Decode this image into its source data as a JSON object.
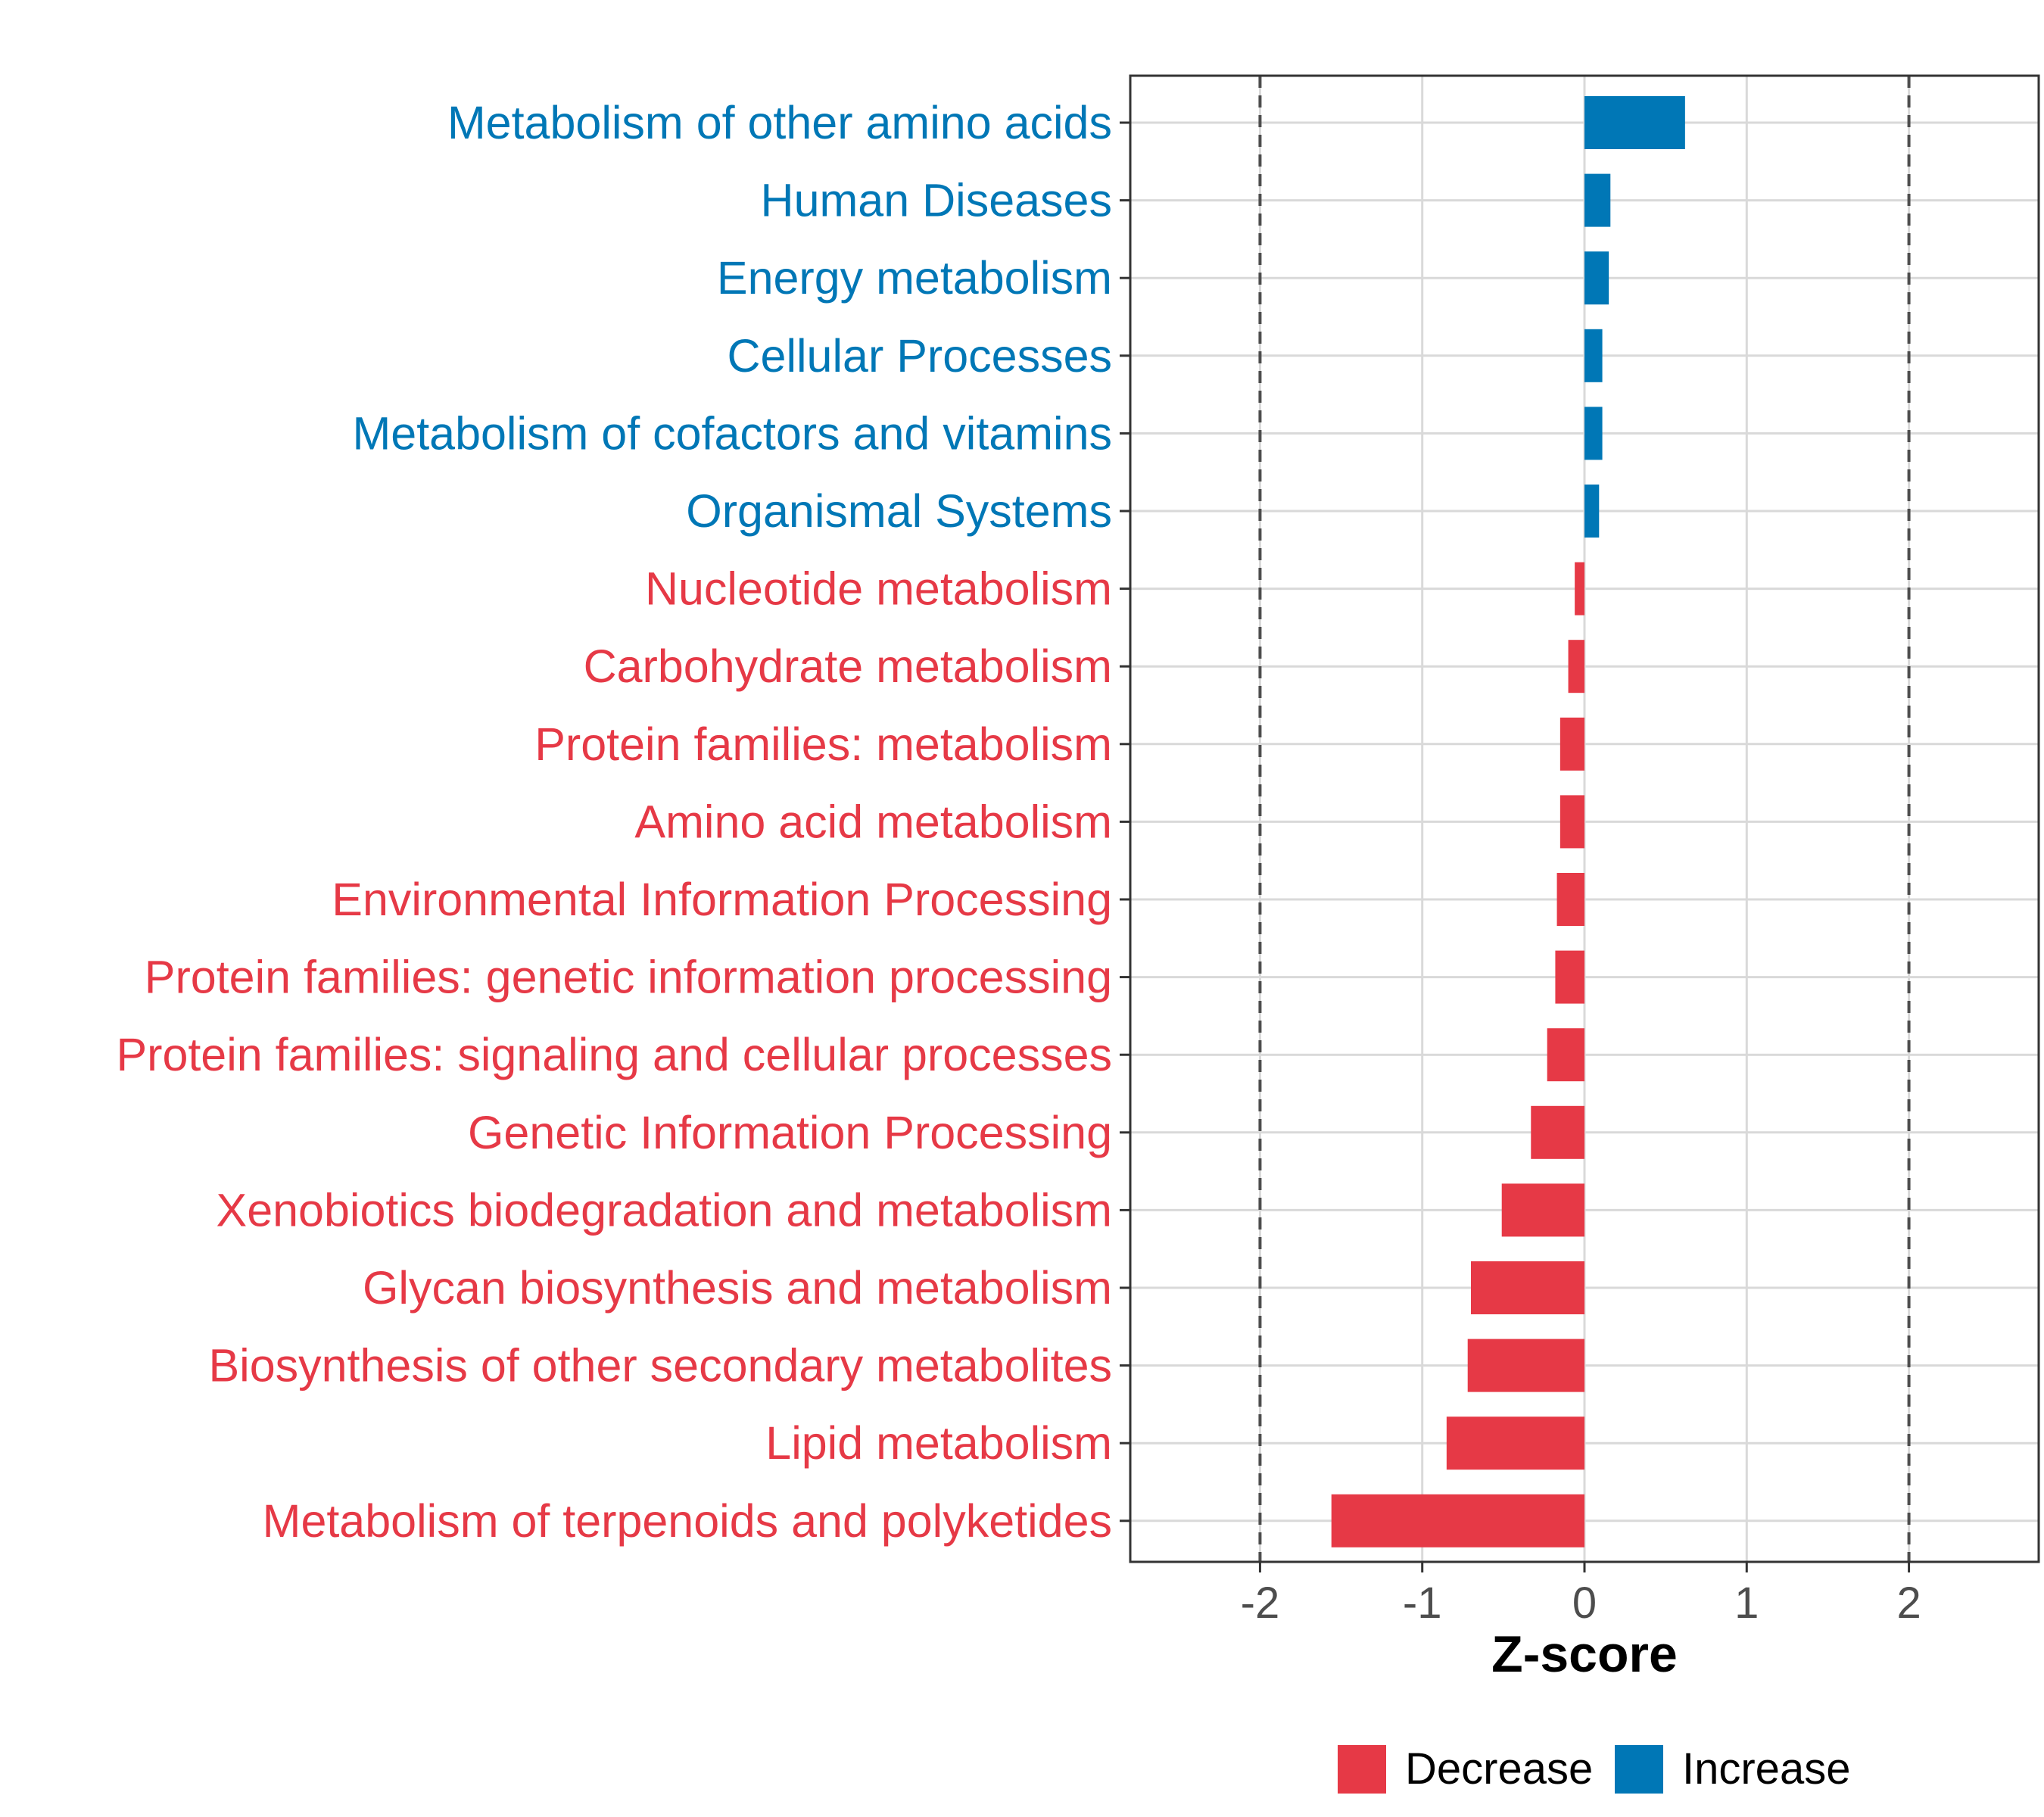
{
  "chart_data": {
    "type": "bar",
    "orientation": "horizontal",
    "xlabel": "Z-score",
    "xlim": [
      -2.8,
      2.8
    ],
    "xticks": [
      -2,
      -1,
      0,
      1,
      2
    ],
    "xtick_labels": [
      "-2",
      "-1",
      "0",
      "1",
      "2"
    ],
    "reference_lines": [
      -2,
      2
    ],
    "grid": true,
    "legend_position": "bottom",
    "categories": [
      "Metabolism of other amino acids",
      "Human Diseases",
      "Energy metabolism",
      "Cellular Processes",
      "Metabolism of cofactors and vitamins",
      "Organismal Systems",
      "Nucleotide metabolism",
      "Carbohydrate metabolism",
      "Protein families: metabolism",
      "Amino acid metabolism",
      "Environmental Information Processing",
      "Protein families: genetic information processing",
      "Protein families: signaling and cellular processes",
      "Genetic Information Processing",
      "Xenobiotics biodegradation and metabolism",
      "Glycan biosynthesis and metabolism",
      "Biosynthesis of other secondary metabolites",
      "Lipid metabolism",
      "Metabolism of terpenoids and polyketides"
    ],
    "values": [
      0.62,
      0.16,
      0.15,
      0.11,
      0.11,
      0.09,
      -0.06,
      -0.1,
      -0.15,
      -0.15,
      -0.17,
      -0.18,
      -0.23,
      -0.33,
      -0.51,
      -0.7,
      -0.72,
      -0.85,
      -1.56
    ],
    "groups": [
      "Increase",
      "Increase",
      "Increase",
      "Increase",
      "Increase",
      "Increase",
      "Decrease",
      "Decrease",
      "Decrease",
      "Decrease",
      "Decrease",
      "Decrease",
      "Decrease",
      "Decrease",
      "Decrease",
      "Decrease",
      "Decrease",
      "Decrease",
      "Decrease"
    ],
    "legend": [
      {
        "name": "Decrease",
        "color": "#e63946"
      },
      {
        "name": "Increase",
        "color": "#0077b6"
      }
    ]
  },
  "colors": {
    "decrease": "#e63946",
    "increase": "#0077b6",
    "grid": "#d9d9d9",
    "refline": "#4d4d4d",
    "panel_border": "#333333"
  }
}
